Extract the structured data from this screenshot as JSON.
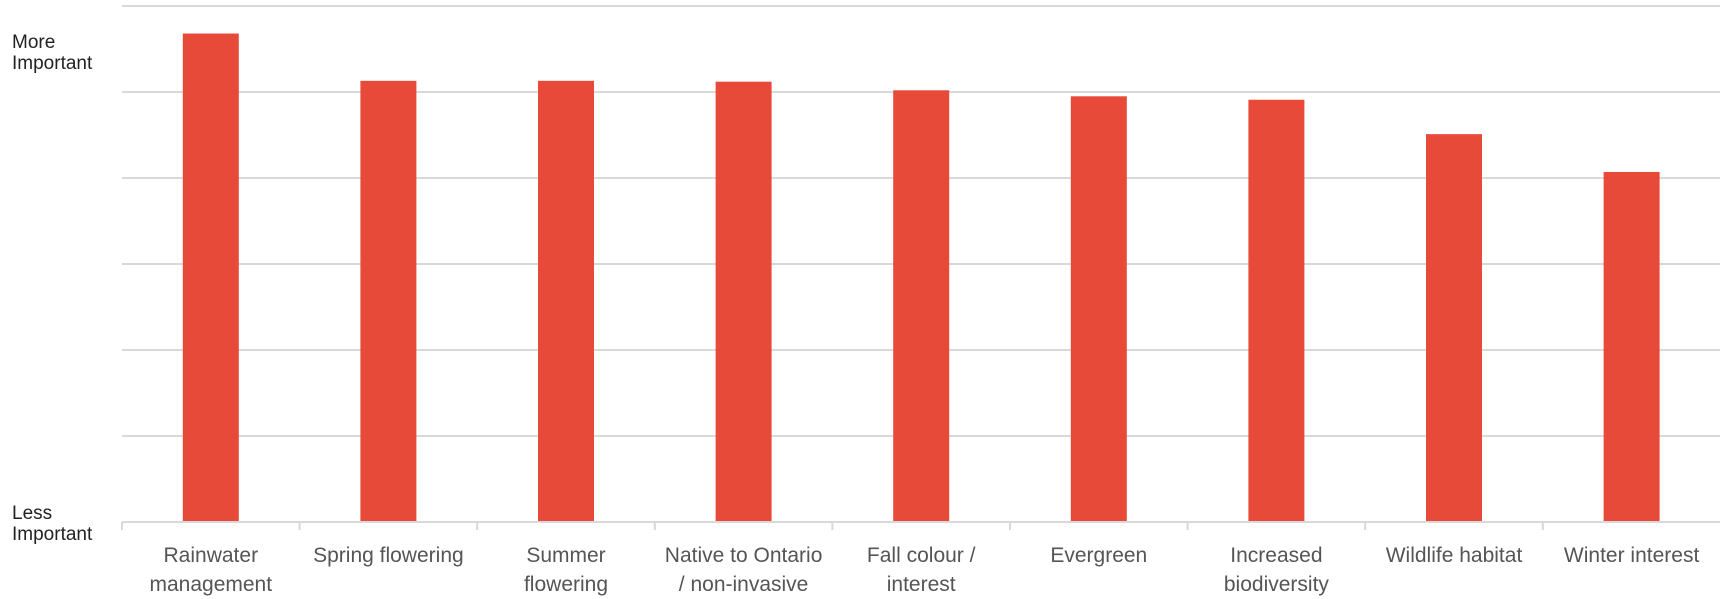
{
  "chart_data": {
    "type": "bar",
    "title": "",
    "xlabel": "",
    "ylabel": "",
    "y_top_label": [
      "More",
      "Important"
    ],
    "y_bottom_label": [
      "Less",
      "Important"
    ],
    "categories": [
      [
        "Rainwater",
        "management"
      ],
      [
        "Spring flowering"
      ],
      [
        "Summer",
        "flowering"
      ],
      [
        "Native to Ontario",
        "/ non-invasive"
      ],
      [
        "Fall colour /",
        "interest"
      ],
      [
        "Evergreen"
      ],
      [
        "Increased",
        "biodiversity"
      ],
      [
        "Wildlife habitat"
      ],
      [
        "Winter interest"
      ]
    ],
    "values": [
      5.68,
      5.13,
      5.13,
      5.12,
      5.02,
      4.95,
      4.91,
      4.51,
      4.07
    ],
    "ylim": [
      0,
      6
    ],
    "grid": true,
    "bar_color": "#e84a39",
    "grid_color": "#d9d9d9"
  }
}
